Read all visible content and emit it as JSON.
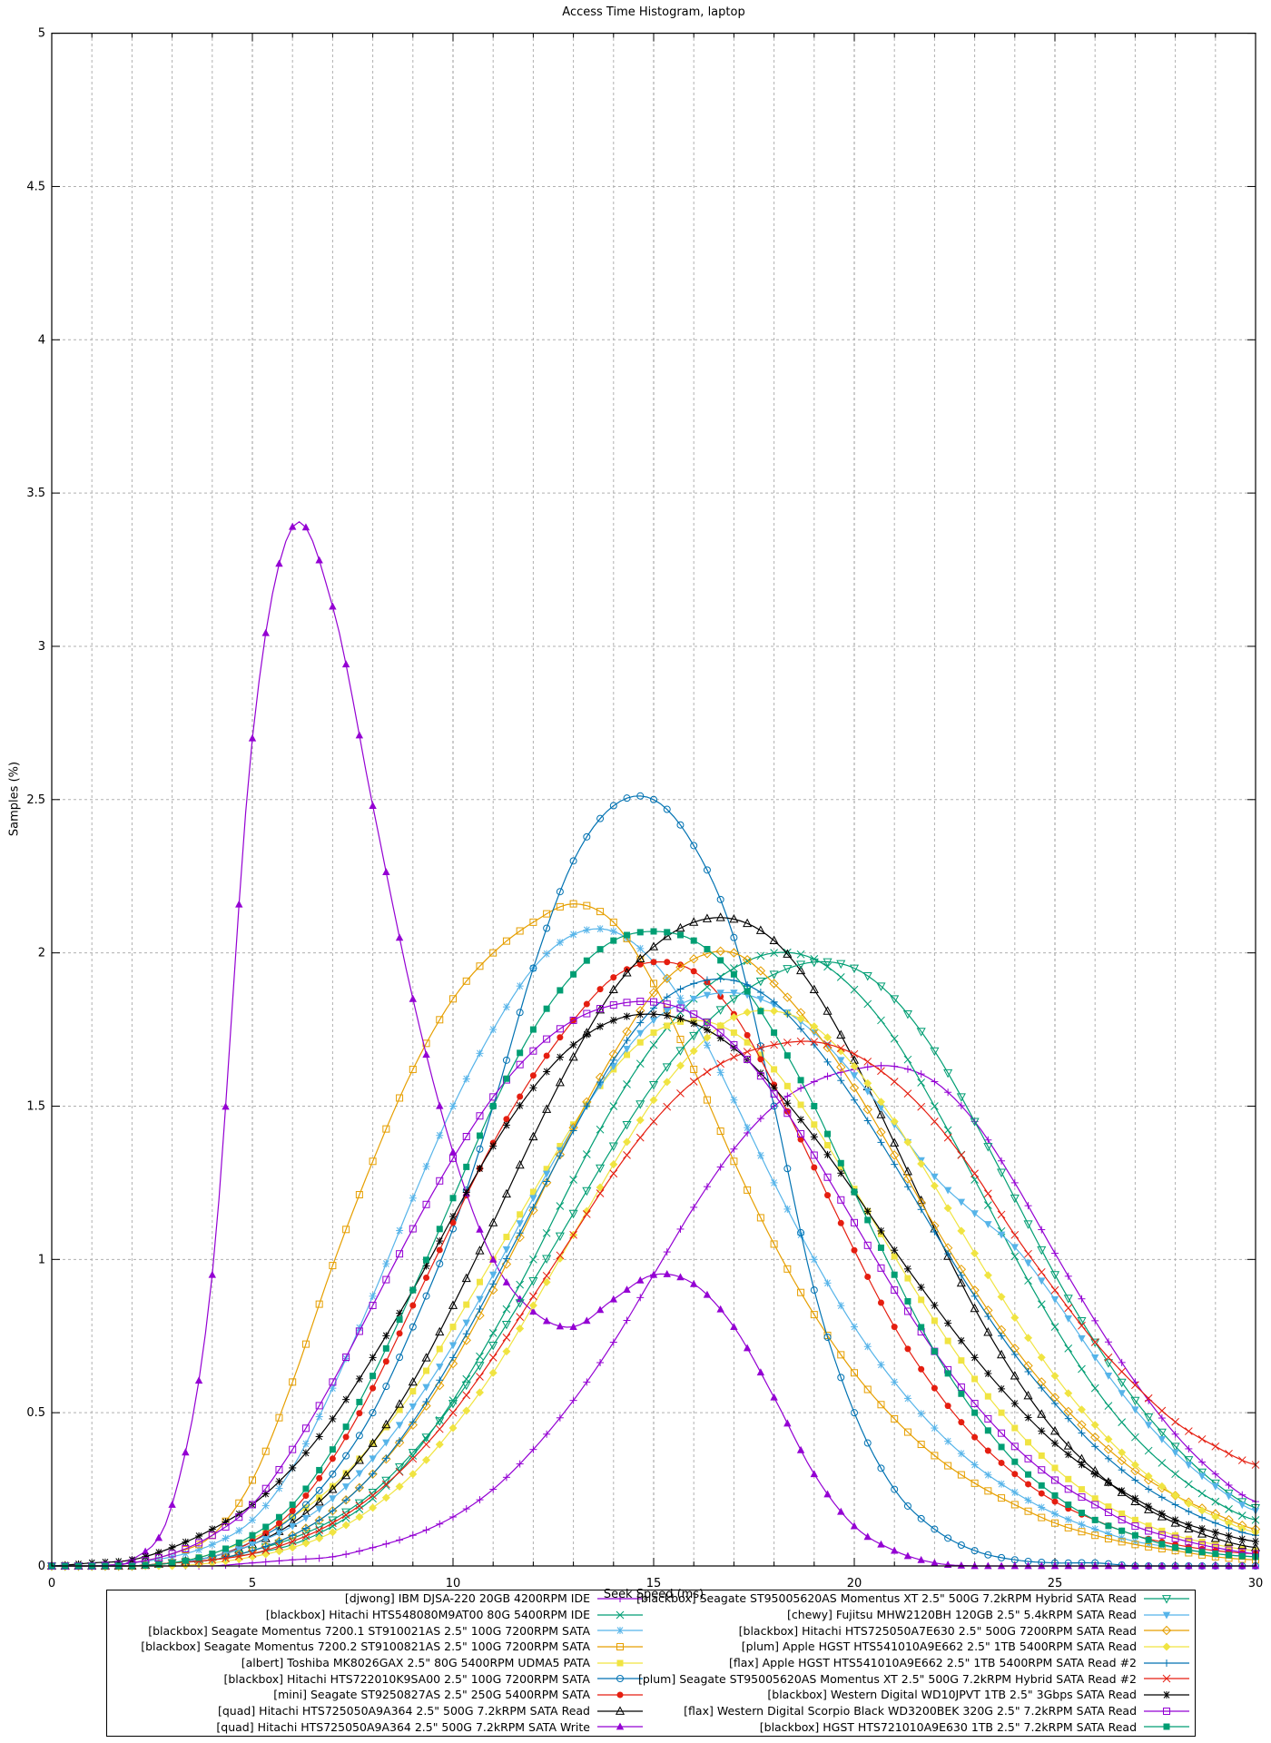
{
  "title": "Access Time Histogram, laptop",
  "chart_data": {
    "type": "line",
    "title": "Access Time Histogram, laptop",
    "xlabel": "Seek Speed (ms)",
    "ylabel": "Samples (%)",
    "xlim": [
      0,
      30
    ],
    "ylim": [
      0,
      5
    ],
    "xtick_major": 5,
    "xtick_minor": 1,
    "ytick_major": 0.5,
    "grid": true,
    "legend_position": "bottom-box-two-columns",
    "marker_step_ms": 0.333,
    "x": [
      0,
      1,
      2,
      3,
      4,
      5,
      6,
      7,
      8,
      9,
      10,
      11,
      12,
      13,
      14,
      15,
      16,
      17,
      18,
      19,
      20,
      21,
      22,
      23,
      24,
      25,
      26,
      27,
      28,
      29,
      30
    ],
    "series": [
      {
        "name": "[djwong] IBM DJSA-220 20GB 4200RPM IDE",
        "color": "#9400d3",
        "marker": "plus",
        "values": [
          0,
          0,
          0,
          0,
          0,
          0.01,
          0.02,
          0.03,
          0.06,
          0.1,
          0.16,
          0.25,
          0.38,
          0.54,
          0.73,
          0.95,
          1.17,
          1.36,
          1.5,
          1.58,
          1.62,
          1.63,
          1.58,
          1.45,
          1.25,
          1.02,
          0.8,
          0.6,
          0.43,
          0.3,
          0.21
        ]
      },
      {
        "name": "[blackbox] Hitachi HTS548080M9AT00 80G 5400RPM IDE",
        "color": "#009e73",
        "marker": "cross",
        "values": [
          0,
          0,
          0,
          0.01,
          0.02,
          0.04,
          0.07,
          0.13,
          0.22,
          0.36,
          0.54,
          0.76,
          1.0,
          1.26,
          1.5,
          1.7,
          1.85,
          1.95,
          2.0,
          1.98,
          1.88,
          1.72,
          1.5,
          1.26,
          1.01,
          0.78,
          0.58,
          0.42,
          0.3,
          0.21,
          0.15
        ]
      },
      {
        "name": "[blackbox] Seagate Momentus 7200.1 ST910021AS 2.5\" 100G 7200RPM SATA",
        "color": "#56b4e9",
        "marker": "asterisk",
        "values": [
          0,
          0,
          0.01,
          0.03,
          0.07,
          0.15,
          0.32,
          0.58,
          0.88,
          1.2,
          1.5,
          1.75,
          1.95,
          2.06,
          2.07,
          1.97,
          1.78,
          1.52,
          1.25,
          1.0,
          0.78,
          0.6,
          0.45,
          0.33,
          0.24,
          0.17,
          0.12,
          0.08,
          0.06,
          0.04,
          0.03
        ]
      },
      {
        "name": "[blackbox] Seagate Momentus 7200.2 ST9100821AS 2.5\" 100G 7200RPM SATA",
        "color": "#e69f00",
        "marker": "square-open",
        "values": [
          0,
          0,
          0.01,
          0.04,
          0.1,
          0.28,
          0.6,
          0.98,
          1.32,
          1.62,
          1.85,
          2.0,
          2.1,
          2.16,
          2.1,
          1.9,
          1.62,
          1.32,
          1.05,
          0.82,
          0.63,
          0.48,
          0.36,
          0.27,
          0.2,
          0.14,
          0.1,
          0.07,
          0.05,
          0.03,
          0.02
        ]
      },
      {
        "name": "[albert] Toshiba MK8026GAX 2.5\" 80G 5400RPM UDMA5 PATA",
        "color": "#f0e442",
        "marker": "square-filled",
        "values": [
          0,
          0,
          0,
          0.01,
          0.04,
          0.09,
          0.16,
          0.26,
          0.4,
          0.57,
          0.78,
          1.0,
          1.22,
          1.44,
          1.62,
          1.74,
          1.78,
          1.74,
          1.62,
          1.44,
          1.23,
          1.01,
          0.8,
          0.61,
          0.45,
          0.32,
          0.22,
          0.15,
          0.1,
          0.07,
          0.05
        ]
      },
      {
        "name": "[blackbox] Hitachi HTS722010K9SA00 2.5\" 100G 7200RPM SATA",
        "color": "#0072b2",
        "marker": "circle-open",
        "values": [
          0,
          0,
          0,
          0.01,
          0.03,
          0.08,
          0.16,
          0.3,
          0.5,
          0.78,
          1.1,
          1.5,
          1.95,
          2.3,
          2.48,
          2.5,
          2.35,
          2.05,
          1.5,
          0.9,
          0.5,
          0.25,
          0.12,
          0.05,
          0.02,
          0.01,
          0.01,
          0,
          0,
          0,
          0
        ]
      },
      {
        "name": "[mini] Seagate ST9250827AS 2.5\" 250G 5400RPM SATA",
        "color": "#e51e10",
        "marker": "circle-filled",
        "values": [
          0,
          0,
          0,
          0.01,
          0.03,
          0.08,
          0.18,
          0.35,
          0.58,
          0.85,
          1.12,
          1.38,
          1.6,
          1.78,
          1.92,
          1.97,
          1.94,
          1.8,
          1.57,
          1.3,
          1.03,
          0.78,
          0.58,
          0.42,
          0.3,
          0.21,
          0.15,
          0.1,
          0.07,
          0.05,
          0.04
        ]
      },
      {
        "name": "[quad] Hitachi HTS725050A9A364 2.5\" 500G 7.2kRPM SATA Read",
        "color": "#000000",
        "marker": "triangle-up-open",
        "values": [
          0,
          0,
          0,
          0.01,
          0.03,
          0.07,
          0.14,
          0.25,
          0.4,
          0.6,
          0.85,
          1.12,
          1.4,
          1.66,
          1.88,
          2.02,
          2.1,
          2.11,
          2.04,
          1.88,
          1.65,
          1.38,
          1.1,
          0.84,
          0.62,
          0.44,
          0.31,
          0.21,
          0.14,
          0.09,
          0.06
        ]
      },
      {
        "name": "[quad] Hitachi HTS725050A9A364 2.5\" 500G 7.2kRPM SATA Write",
        "color": "#9400d3",
        "marker": "triangle-up-filled",
        "values": [
          0,
          0,
          0.02,
          0.2,
          0.95,
          2.7,
          3.39,
          3.13,
          2.48,
          1.85,
          1.35,
          1.0,
          0.83,
          0.78,
          0.87,
          0.95,
          0.92,
          0.78,
          0.55,
          0.3,
          0.13,
          0.05,
          0.01,
          0,
          0,
          0,
          0,
          0,
          0,
          0,
          0
        ]
      },
      {
        "name": "[blackbox] Seagate ST95005620AS Momentus XT 2.5\" 500G 7.2kRPM Hybrid SATA Read",
        "color": "#009e73",
        "marker": "triangle-down-open",
        "values": [
          0,
          0,
          0,
          0.01,
          0.02,
          0.05,
          0.09,
          0.15,
          0.24,
          0.37,
          0.53,
          0.72,
          0.93,
          1.15,
          1.37,
          1.57,
          1.73,
          1.85,
          1.93,
          1.97,
          1.95,
          1.85,
          1.68,
          1.45,
          1.2,
          0.95,
          0.73,
          0.54,
          0.39,
          0.27,
          0.19
        ]
      },
      {
        "name": "[chewy] Fujitsu MHW2120BH 120GB 2.5\" 5.4kRPM SATA Read",
        "color": "#56b4e9",
        "marker": "triangle-down-filled",
        "values": [
          0,
          0,
          0,
          0.01,
          0.03,
          0.07,
          0.13,
          0.22,
          0.35,
          0.52,
          0.72,
          0.95,
          1.2,
          1.43,
          1.63,
          1.78,
          1.85,
          1.87,
          1.83,
          1.74,
          1.6,
          1.44,
          1.27,
          1.15,
          1.04,
          0.87,
          0.68,
          0.51,
          0.37,
          0.26,
          0.18
        ]
      },
      {
        "name": "[blackbox] Hitachi HTS725050A7E630 2.5\" 500G 7200RPM SATA Read",
        "color": "#e69f00",
        "marker": "diamond-open",
        "values": [
          0,
          0,
          0,
          0.01,
          0.02,
          0.05,
          0.1,
          0.18,
          0.3,
          0.46,
          0.66,
          0.9,
          1.16,
          1.43,
          1.67,
          1.87,
          1.98,
          2.0,
          1.9,
          1.75,
          1.56,
          1.34,
          1.11,
          0.9,
          0.71,
          0.55,
          0.42,
          0.31,
          0.23,
          0.17,
          0.12
        ]
      },
      {
        "name": "[plum] Apple HGST HTS541010A9E662 2.5\" 1TB 5400RPM SATA Read",
        "color": "#f0e442",
        "marker": "diamond-filled",
        "values": [
          0,
          0,
          0,
          0,
          0.01,
          0.03,
          0.06,
          0.11,
          0.19,
          0.3,
          0.45,
          0.63,
          0.85,
          1.08,
          1.31,
          1.52,
          1.68,
          1.79,
          1.81,
          1.76,
          1.63,
          1.45,
          1.24,
          1.02,
          0.81,
          0.62,
          0.46,
          0.33,
          0.23,
          0.16,
          0.11
        ]
      },
      {
        "name": "[flax] Apple HGST HTS541010A9E662 2.5\" 1TB 5400RPM SATA Read #2",
        "color": "#0072b2",
        "marker": "plus",
        "values": [
          0,
          0,
          0,
          0.01,
          0.02,
          0.05,
          0.1,
          0.18,
          0.3,
          0.47,
          0.68,
          0.92,
          1.17,
          1.42,
          1.65,
          1.82,
          1.9,
          1.91,
          1.84,
          1.7,
          1.52,
          1.31,
          1.09,
          0.88,
          0.69,
          0.53,
          0.39,
          0.28,
          0.2,
          0.14,
          0.1
        ]
      },
      {
        "name": "[plum] Seagate ST95005620AS Momentus XT 2.5\" 500G 7.2kRPM Hybrid SATA Read #2",
        "color": "#e51e10",
        "marker": "cross",
        "values": [
          0,
          0,
          0,
          0.01,
          0.02,
          0.04,
          0.08,
          0.14,
          0.23,
          0.35,
          0.5,
          0.68,
          0.88,
          1.08,
          1.28,
          1.45,
          1.58,
          1.66,
          1.7,
          1.71,
          1.67,
          1.58,
          1.45,
          1.28,
          1.08,
          0.9,
          0.73,
          0.59,
          0.47,
          0.39,
          0.33
        ]
      },
      {
        "name": "[blackbox] Western Digital WD10JPVT 1TB 2.5\" 3Gbps SATA Read",
        "color": "#000000",
        "marker": "asterisk",
        "values": [
          0,
          0.01,
          0.02,
          0.06,
          0.12,
          0.2,
          0.32,
          0.48,
          0.68,
          0.9,
          1.14,
          1.37,
          1.56,
          1.7,
          1.78,
          1.8,
          1.77,
          1.69,
          1.56,
          1.4,
          1.22,
          1.03,
          0.85,
          0.68,
          0.53,
          0.4,
          0.3,
          0.22,
          0.15,
          0.11,
          0.08
        ]
      },
      {
        "name": "[flax] Western Digital Scorpio Black WD3200BEK 320G 2.5\" 7.2kRPM SATA Read",
        "color": "#9400d3",
        "marker": "square-open",
        "values": [
          0,
          0,
          0.01,
          0.04,
          0.1,
          0.2,
          0.38,
          0.6,
          0.85,
          1.1,
          1.33,
          1.53,
          1.68,
          1.78,
          1.83,
          1.84,
          1.8,
          1.7,
          1.54,
          1.34,
          1.12,
          0.9,
          0.7,
          0.53,
          0.39,
          0.28,
          0.2,
          0.13,
          0.09,
          0.06,
          0.04
        ]
      },
      {
        "name": "[blackbox] HGST HTS721010A9E630 1TB 2.5\" 7.2kRPM SATA Read",
        "color": "#009e73",
        "marker": "square-filled",
        "values": [
          0,
          0,
          0,
          0.01,
          0.04,
          0.1,
          0.2,
          0.38,
          0.62,
          0.9,
          1.2,
          1.5,
          1.75,
          1.93,
          2.04,
          2.07,
          2.04,
          1.93,
          1.74,
          1.5,
          1.22,
          0.95,
          0.7,
          0.5,
          0.34,
          0.23,
          0.15,
          0.1,
          0.06,
          0.04,
          0.03
        ]
      }
    ],
    "x_tick_labels": [
      "0",
      "5",
      "10",
      "15",
      "20",
      "25",
      "30"
    ],
    "y_tick_labels": [
      "0",
      "0.5",
      "1",
      "1.5",
      "2",
      "2.5",
      "3",
      "3.5",
      "4",
      "4.5",
      "5"
    ],
    "grid_color": "#b0b0b0",
    "border_color": "#000000"
  }
}
